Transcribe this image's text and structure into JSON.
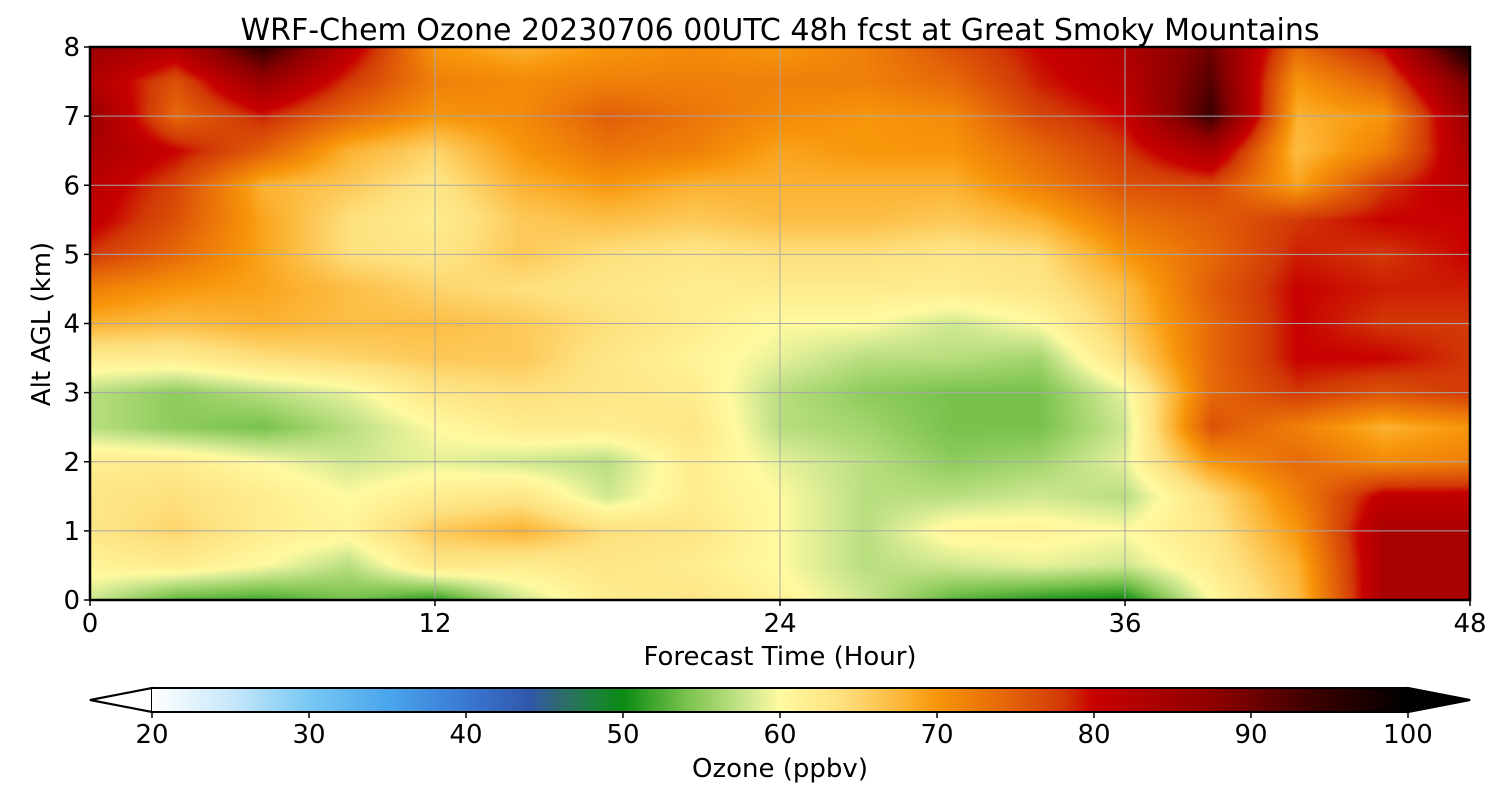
{
  "chart_data": {
    "type": "heatmap",
    "title": "WRF-Chem Ozone  20230706 00UTC 48h fcst at Great Smoky Mountains",
    "xlabel": "Forecast Time (Hour)",
    "ylabel": "Alt AGL (km)",
    "xlim": [
      0,
      48
    ],
    "ylim": [
      0,
      8
    ],
    "xticks": [
      "0",
      "12",
      "24",
      "36",
      "48"
    ],
    "yticks": [
      "0",
      "1",
      "2",
      "3",
      "4",
      "5",
      "6",
      "7",
      "8"
    ],
    "grid": true,
    "x": [
      0,
      3,
      6,
      9,
      12,
      15,
      18,
      21,
      24,
      27,
      30,
      33,
      36,
      39,
      42,
      45,
      48
    ],
    "y": [
      0,
      0.5,
      1,
      1.5,
      2,
      2.5,
      3,
      3.5,
      4,
      4.5,
      5,
      5.5,
      6,
      6.5,
      7,
      7.5,
      8
    ],
    "z": [
      [
        58,
        53,
        52,
        54,
        51,
        58,
        62,
        63,
        61,
        58,
        53,
        51,
        50,
        60,
        67,
        84,
        84
      ],
      [
        61,
        62,
        60,
        57,
        63,
        62,
        63,
        62,
        60,
        57,
        58,
        59,
        58,
        62,
        68,
        84,
        84
      ],
      [
        63,
        65,
        62,
        61,
        66,
        68,
        64,
        63,
        60,
        57,
        61,
        61,
        60,
        63,
        70,
        84,
        84
      ],
      [
        63,
        64,
        62,
        60,
        62,
        63,
        58,
        62,
        60,
        57,
        57,
        58,
        57,
        64,
        72,
        81,
        81
      ],
      [
        62,
        62,
        60,
        58,
        59,
        58,
        57,
        62,
        59,
        57,
        55,
        56,
        59,
        70,
        74,
        71,
        72
      ],
      [
        57,
        55,
        54,
        57,
        60,
        62,
        62,
        63,
        57,
        56,
        54,
        54,
        58,
        76,
        72,
        68,
        70
      ],
      [
        57,
        55,
        57,
        59,
        63,
        64,
        63,
        62,
        57,
        55,
        54,
        54,
        59,
        74,
        78,
        76,
        78
      ],
      [
        62,
        62,
        64,
        65,
        66,
        66,
        63,
        61,
        59,
        57,
        57,
        56,
        64,
        74,
        80,
        80,
        78
      ],
      [
        68,
        67,
        68,
        67,
        67,
        66,
        64,
        62,
        60,
        60,
        58,
        60,
        66,
        74,
        80,
        78,
        78
      ],
      [
        72,
        70,
        69,
        67,
        65,
        64,
        63,
        62,
        62,
        62,
        62,
        63,
        67,
        75,
        80,
        79,
        79
      ],
      [
        78,
        74,
        69,
        64,
        63,
        66,
        64,
        63,
        64,
        64,
        63,
        64,
        70,
        74,
        79,
        78,
        80
      ],
      [
        81,
        76,
        69,
        64,
        62,
        66,
        67,
        66,
        67,
        67,
        66,
        68,
        73,
        75,
        78,
        80,
        80
      ],
      [
        82,
        77,
        68,
        66,
        63,
        68,
        70,
        68,
        68,
        68,
        68,
        72,
        76,
        77,
        69,
        78,
        82
      ],
      [
        84,
        80,
        75,
        68,
        65,
        70,
        73,
        72,
        69,
        70,
        70,
        74,
        78,
        84,
        67,
        72,
        84
      ],
      [
        86,
        74,
        79,
        74,
        70,
        71,
        75,
        73,
        71,
        70,
        71,
        77,
        80,
        94,
        68,
        70,
        86
      ],
      [
        83,
        76,
        86,
        78,
        72,
        71,
        72,
        72,
        72,
        72,
        74,
        79,
        82,
        92,
        70,
        75,
        90
      ],
      [
        86,
        83,
        95,
        82,
        70,
        68,
        70,
        71,
        70,
        72,
        76,
        80,
        83,
        90,
        74,
        80,
        98
      ]
    ],
    "colorbar": {
      "label": "Ozone  (ppbv)",
      "min": 20,
      "max": 100,
      "ticks": [
        "20",
        "30",
        "40",
        "50",
        "60",
        "70",
        "80",
        "90",
        "100"
      ],
      "extend": "both",
      "stops": [
        {
          "v": 20,
          "c": "#ffffff"
        },
        {
          "v": 25,
          "c": "#c8e8fa"
        },
        {
          "v": 30,
          "c": "#78c8f4"
        },
        {
          "v": 35,
          "c": "#4aa6ec"
        },
        {
          "v": 40,
          "c": "#3a78d2"
        },
        {
          "v": 44,
          "c": "#3058ac"
        },
        {
          "v": 46,
          "c": "#2f6a6e"
        },
        {
          "v": 48,
          "c": "#1e8040"
        },
        {
          "v": 50,
          "c": "#0a8a12"
        },
        {
          "v": 54,
          "c": "#78c24c"
        },
        {
          "v": 58,
          "c": "#cfe890"
        },
        {
          "v": 60,
          "c": "#fffaa0"
        },
        {
          "v": 64,
          "c": "#fee07e"
        },
        {
          "v": 68,
          "c": "#fcb232"
        },
        {
          "v": 70,
          "c": "#f8960a"
        },
        {
          "v": 74,
          "c": "#e66a08"
        },
        {
          "v": 78,
          "c": "#d23a06"
        },
        {
          "v": 80,
          "c": "#c80000"
        },
        {
          "v": 88,
          "c": "#8a0000"
        },
        {
          "v": 94,
          "c": "#3a0000"
        },
        {
          "v": 100,
          "c": "#000000"
        }
      ]
    }
  }
}
